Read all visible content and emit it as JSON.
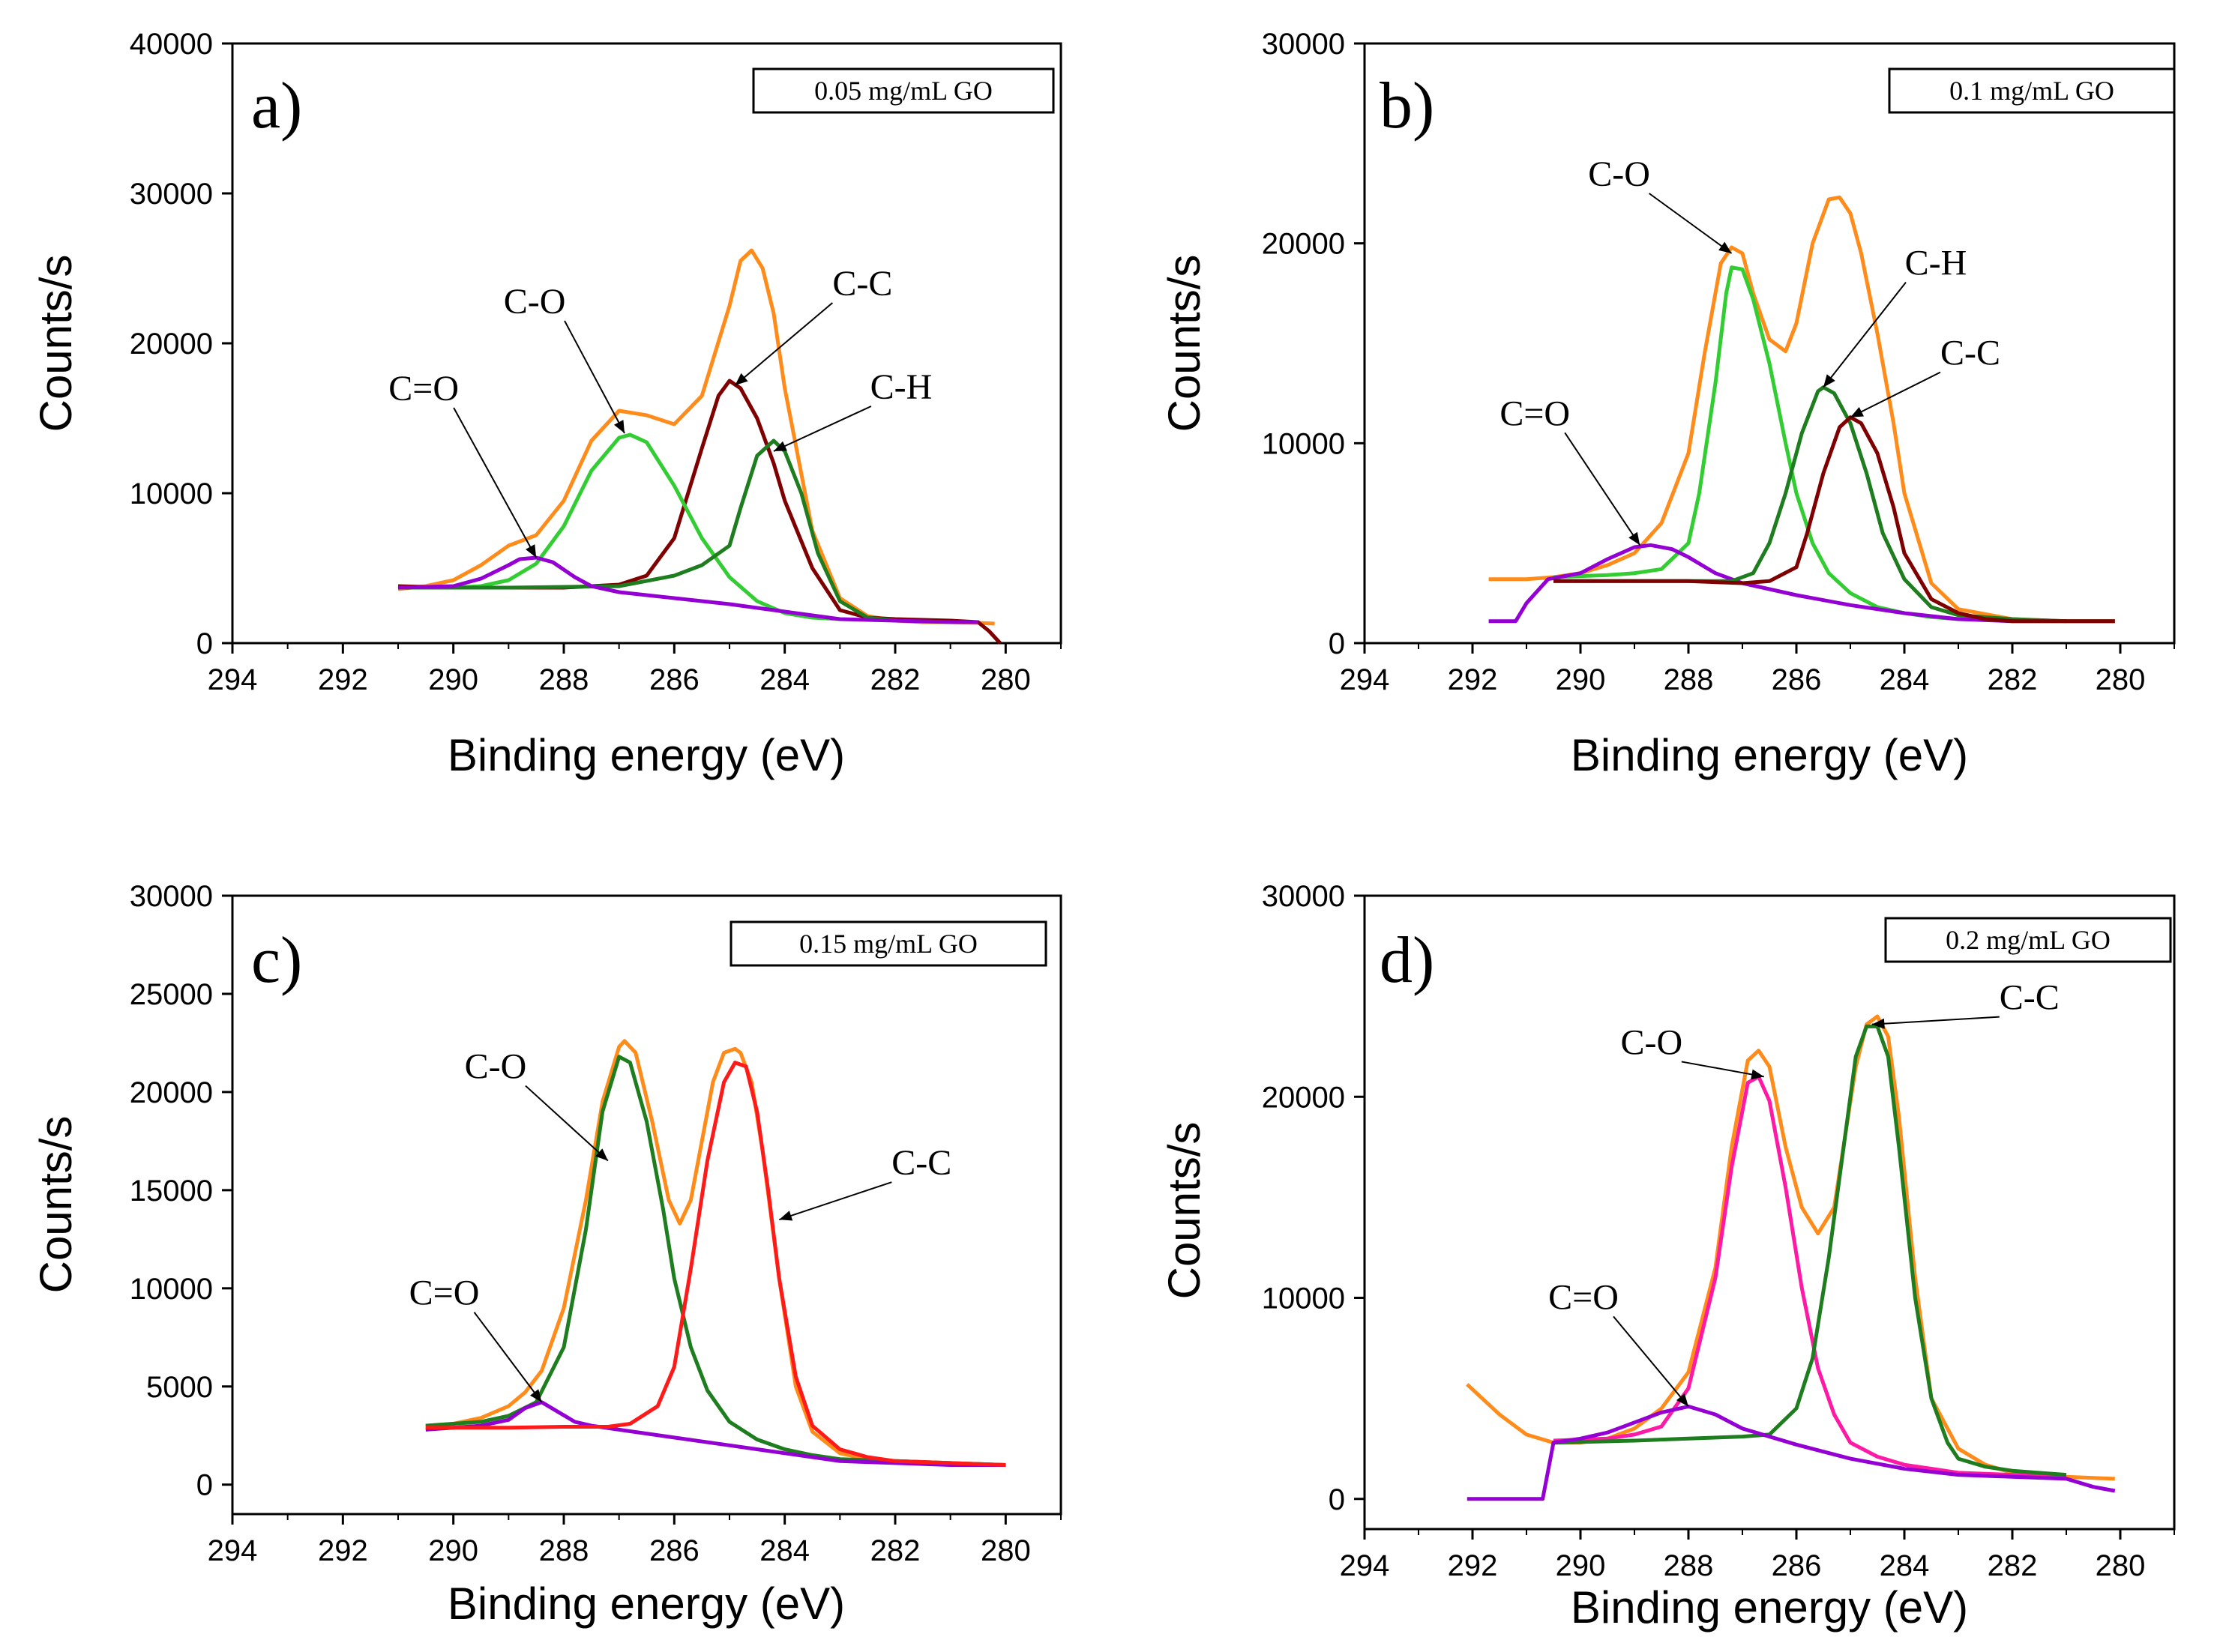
{
  "chart_data": [
    {
      "type": "line",
      "panel_label": "a)",
      "legend": "0.05 mg/mL GO",
      "xlabel": "Binding energy (eV)",
      "ylabel": "Counts/s",
      "xlim": [
        294,
        279
      ],
      "ylim": [
        0,
        40000
      ],
      "xticks": [
        "294",
        "292",
        "290",
        "288",
        "286",
        "284",
        "282",
        "280"
      ],
      "yticks": [
        "0",
        "10000",
        "20000",
        "30000",
        "40000"
      ],
      "series": [
        {
          "color": "#ff8c1a",
          "x": [
            291,
            290.5,
            290,
            289.5,
            289,
            288.5,
            288,
            287.5,
            287,
            286.5,
            286,
            285.5,
            285,
            284.8,
            284.6,
            284.4,
            284.2,
            284,
            283.5,
            283,
            282.5,
            282,
            281.5,
            281,
            280.5,
            280.2
          ],
          "y": [
            3600,
            3800,
            4200,
            5200,
            6500,
            7200,
            9500,
            13500,
            15500,
            15200,
            14600,
            16500,
            22500,
            25500,
            26200,
            25000,
            22000,
            17000,
            7500,
            3000,
            1800,
            1500,
            1400,
            1400,
            1350,
            1300
          ]
        },
        {
          "color": "#7f0000",
          "x": [
            291,
            290,
            289,
            288,
            287,
            286.5,
            286,
            285.5,
            285.2,
            285,
            284.8,
            284.5,
            284.2,
            284,
            283.5,
            283,
            282.5,
            282,
            281,
            280.5,
            280.3,
            280.1
          ],
          "y": [
            3800,
            3700,
            3700,
            3700,
            3900,
            4500,
            7000,
            13000,
            16500,
            17500,
            17000,
            15000,
            12000,
            9500,
            5000,
            2200,
            1700,
            1600,
            1500,
            1400,
            800,
            0
          ]
        },
        {
          "color": "#32cd32",
          "x": [
            291,
            290,
            289.5,
            289,
            288.5,
            288,
            287.5,
            287,
            286.8,
            286.5,
            286,
            285.5,
            285,
            284.5,
            284,
            283.5,
            283
          ],
          "y": [
            3700,
            3700,
            3800,
            4200,
            5300,
            7800,
            11500,
            13700,
            13900,
            13400,
            10500,
            7000,
            4400,
            2800,
            2000,
            1700,
            1600
          ]
        },
        {
          "color": "#1e7d1e",
          "x": [
            291,
            289,
            287,
            286,
            285.5,
            285,
            284.8,
            284.5,
            284.2,
            284,
            283.7,
            283.4,
            283,
            282.5,
            282
          ],
          "y": [
            3700,
            3700,
            3800,
            4500,
            5200,
            6500,
            9000,
            12500,
            13500,
            12800,
            10000,
            6000,
            2800,
            1700,
            1500
          ]
        },
        {
          "color": "#9400d3",
          "x": [
            291,
            290,
            289.5,
            289,
            288.8,
            288.5,
            288.2,
            287.8,
            287.5,
            287,
            286,
            285,
            284,
            283,
            282,
            281,
            280.5
          ],
          "y": [
            3700,
            3800,
            4300,
            5200,
            5600,
            5700,
            5400,
            4400,
            3800,
            3400,
            3000,
            2600,
            2100,
            1600,
            1500,
            1400,
            1400
          ]
        }
      ],
      "annotations": [
        {
          "text": "C=O",
          "x": 288.5,
          "y": 5700
        },
        {
          "text": "C-O",
          "x": 286.9,
          "y": 14000
        },
        {
          "text": "C-C",
          "x": 284.9,
          "y": 17200
        },
        {
          "text": "C-H",
          "x": 284.2,
          "y": 12800
        }
      ]
    },
    {
      "type": "line",
      "panel_label": "b)",
      "legend": "0.1 mg/mL GO",
      "xlabel": "Binding energy (eV)",
      "ylabel": "Counts/s",
      "xlim": [
        294,
        279
      ],
      "ylim": [
        0,
        30000
      ],
      "xticks": [
        "294",
        "292",
        "290",
        "288",
        "286",
        "284",
        "282",
        "280"
      ],
      "yticks": [
        "0",
        "10000",
        "20000",
        "30000"
      ],
      "series": [
        {
          "color": "#ff8c1a",
          "x": [
            291.7,
            291,
            290.5,
            290,
            289.5,
            289,
            288.5,
            288,
            287.7,
            287.4,
            287.2,
            287,
            286.8,
            286.5,
            286.2,
            286,
            285.7,
            285.4,
            285.2,
            285,
            284.8,
            284.5,
            284.2,
            284,
            283.5,
            283,
            282,
            281,
            280.1
          ],
          "y": [
            3200,
            3200,
            3300,
            3500,
            3900,
            4500,
            6000,
            9500,
            14500,
            19000,
            19800,
            19500,
            17500,
            15200,
            14600,
            16000,
            20000,
            22200,
            22300,
            21500,
            19500,
            15500,
            11000,
            7500,
            3000,
            1700,
            1200,
            1100,
            1100
          ]
        },
        {
          "color": "#32cd32",
          "x": [
            290.5,
            289.5,
            289,
            288.5,
            288,
            287.8,
            287.5,
            287.3,
            287.2,
            287,
            286.8,
            286.5,
            286.2,
            286,
            285.7,
            285.4,
            285,
            284.5,
            284,
            283.5,
            283
          ],
          "y": [
            3300,
            3400,
            3500,
            3700,
            5000,
            7500,
            13000,
            17500,
            18800,
            18700,
            17200,
            14000,
            10000,
            7500,
            5000,
            3500,
            2500,
            1800,
            1500,
            1300,
            1200
          ]
        },
        {
          "color": "#9400d3",
          "x": [
            291.7,
            291.2,
            291,
            290.6,
            290,
            289.5,
            289,
            288.7,
            288.3,
            288,
            287.5,
            287,
            286.5,
            286,
            285,
            284,
            283,
            282,
            281
          ],
          "y": [
            1100,
            1100,
            2000,
            3200,
            3500,
            4200,
            4800,
            4900,
            4700,
            4300,
            3500,
            3000,
            2700,
            2400,
            1900,
            1500,
            1200,
            1100,
            1100
          ]
        },
        {
          "color": "#1e7d1e",
          "x": [
            290.5,
            289,
            288,
            287.2,
            286.8,
            286.5,
            286.2,
            285.9,
            285.6,
            285.5,
            285.3,
            285,
            284.7,
            284.4,
            284,
            283.5,
            283,
            282,
            281,
            280.1
          ],
          "y": [
            3100,
            3100,
            3100,
            3100,
            3500,
            5000,
            7500,
            10500,
            12600,
            12800,
            12500,
            11000,
            8500,
            5500,
            3200,
            1800,
            1400,
            1200,
            1100,
            1100
          ]
        },
        {
          "color": "#7f0000",
          "x": [
            290.5,
            289,
            288,
            287,
            286.5,
            286,
            285.8,
            285.5,
            285.2,
            285,
            284.8,
            284.5,
            284.2,
            284,
            283.5,
            283,
            282.5,
            282,
            281,
            280.1
          ],
          "y": [
            3100,
            3100,
            3100,
            3000,
            3100,
            3800,
            5500,
            8500,
            10800,
            11300,
            11000,
            9500,
            6800,
            4500,
            2200,
            1500,
            1200,
            1100,
            1100,
            1100
          ]
        }
      ],
      "annotations": [
        {
          "text": "C=O",
          "x": 288.9,
          "y": 4900
        },
        {
          "text": "C-O",
          "x": 287.2,
          "y": 19500
        },
        {
          "text": "C-H",
          "x": 285.5,
          "y": 12800
        },
        {
          "text": "C-C",
          "x": 285.0,
          "y": 11300
        }
      ]
    },
    {
      "type": "line",
      "panel_label": "c)",
      "legend": "0.15 mg/mL GO",
      "xlabel": "Binding energy (eV)",
      "ylabel": "Counts/s",
      "xlim": [
        294,
        279
      ],
      "ylim": [
        -1500,
        30000
      ],
      "xticks": [
        "294",
        "292",
        "290",
        "288",
        "286",
        "284",
        "282",
        "280"
      ],
      "yticks": [
        "0",
        "5000",
        "10000",
        "15000",
        "20000",
        "25000",
        "30000"
      ],
      "series": [
        {
          "color": "#ff8c1a",
          "x": [
            290.5,
            290,
            289.5,
            289,
            288.7,
            288.4,
            288,
            287.6,
            287.3,
            287,
            286.9,
            286.7,
            286.4,
            286.1,
            285.9,
            285.7,
            285.5,
            285.3,
            285.1,
            284.9,
            284.8,
            284.6,
            284.4,
            284.1,
            283.8,
            283.5,
            283,
            282.5,
            282,
            281,
            280
          ],
          "y": [
            3000,
            3100,
            3400,
            4000,
            4700,
            5800,
            9000,
            14500,
            19500,
            22300,
            22600,
            22000,
            18500,
            14500,
            13300,
            14500,
            17500,
            20500,
            22000,
            22200,
            22000,
            20500,
            17000,
            10500,
            5000,
            2700,
            1600,
            1300,
            1200,
            1100,
            1000
          ]
        },
        {
          "color": "#1e7d1e",
          "x": [
            290.5,
            289.5,
            289,
            288.5,
            288,
            287.6,
            287.3,
            287,
            286.8,
            286.5,
            286.2,
            286,
            285.7,
            285.4,
            285,
            284.5,
            284,
            283.5,
            283,
            282,
            281,
            280
          ],
          "y": [
            3000,
            3200,
            3500,
            4200,
            7000,
            13000,
            19000,
            21800,
            21500,
            18500,
            14000,
            10500,
            7000,
            4800,
            3200,
            2300,
            1800,
            1500,
            1300,
            1200,
            1100,
            1000
          ]
        },
        {
          "color": "#9400d3",
          "x": [
            290.5,
            289.5,
            289,
            288.7,
            288.4,
            288.1,
            287.8,
            287.5,
            287,
            286,
            285,
            284,
            283,
            282,
            281,
            280
          ],
          "y": [
            2800,
            3000,
            3300,
            3900,
            4200,
            3700,
            3200,
            3000,
            2800,
            2400,
            2000,
            1600,
            1200,
            1100,
            1000,
            1000
          ]
        },
        {
          "color": "#ff1a1a",
          "x": [
            290.5,
            289,
            288,
            287.2,
            286.8,
            286.3,
            286,
            285.7,
            285.4,
            285.1,
            284.9,
            284.7,
            284.5,
            284.3,
            284.1,
            283.8,
            283.5,
            283,
            282.5,
            282,
            281,
            280
          ],
          "y": [
            2900,
            2900,
            2950,
            2950,
            3100,
            4000,
            6000,
            11000,
            16500,
            20500,
            21500,
            21300,
            19000,
            15000,
            10500,
            5500,
            3000,
            1800,
            1400,
            1200,
            1100,
            1000
          ]
        }
      ],
      "annotations": [
        {
          "text": "C=O",
          "x": 288.4,
          "y": 4200
        },
        {
          "text": "C-O",
          "x": 287.2,
          "y": 16500
        },
        {
          "text": "C-C",
          "x": 284.1,
          "y": 13500
        }
      ]
    },
    {
      "type": "line",
      "panel_label": "d)",
      "legend": "0.2 mg/mL GO",
      "xlabel": "Binding energy (eV)",
      "ylabel": "Counts/s",
      "xlim": [
        294,
        279
      ],
      "ylim": [
        -1500,
        30000
      ],
      "xticks": [
        "294",
        "292",
        "290",
        "288",
        "286",
        "284",
        "282",
        "280"
      ],
      "yticks": [
        "0",
        "10000",
        "20000",
        "30000"
      ],
      "series": [
        {
          "color": "#ff8c1a",
          "x": [
            292.1,
            291.5,
            291,
            290.5,
            290,
            289.5,
            289,
            288.5,
            288,
            287.5,
            287.2,
            286.9,
            286.7,
            286.5,
            286.2,
            285.9,
            285.6,
            285.3,
            285.1,
            284.9,
            284.7,
            284.5,
            284.3,
            284.1,
            283.8,
            283.5,
            283,
            282.5,
            282,
            281,
            280.1
          ],
          "y": [
            5700,
            4200,
            3200,
            2800,
            2800,
            3000,
            3500,
            4500,
            6300,
            11500,
            17500,
            21800,
            22300,
            21500,
            17500,
            14500,
            13200,
            14500,
            18000,
            21500,
            23600,
            24000,
            23000,
            19000,
            11000,
            5000,
            2500,
            1700,
            1300,
            1100,
            1000
          ]
        },
        {
          "color": "#ff1aa6",
          "x": [
            290.5,
            289.5,
            289,
            288.5,
            288,
            287.5,
            287.2,
            286.9,
            286.7,
            286.5,
            286.2,
            285.9,
            285.6,
            285.3,
            285,
            284.5,
            284,
            283.5,
            283,
            282,
            281
          ],
          "y": [
            2900,
            3000,
            3200,
            3600,
            5500,
            11000,
            16500,
            20700,
            21000,
            19800,
            15500,
            10500,
            6500,
            4200,
            2800,
            2100,
            1700,
            1500,
            1300,
            1200,
            1100
          ]
        },
        {
          "color": "#1e7d1e",
          "x": [
            290.5,
            289,
            288,
            287,
            286.5,
            286,
            285.7,
            285.4,
            285.1,
            284.9,
            284.7,
            284.5,
            284.3,
            284.1,
            283.8,
            283.5,
            283.2,
            283,
            282.5,
            282,
            281
          ],
          "y": [
            2800,
            2900,
            3000,
            3100,
            3200,
            4500,
            7000,
            12000,
            18000,
            22000,
            23500,
            23500,
            22000,
            17500,
            10000,
            5000,
            2800,
            2000,
            1600,
            1400,
            1200
          ]
        },
        {
          "color": "#9400d3",
          "x": [
            292.1,
            291,
            290.7,
            290.5,
            290,
            289.5,
            289,
            288.5,
            288,
            287.5,
            287,
            286,
            285,
            284,
            283,
            282,
            281,
            280.5,
            280.1
          ],
          "y": [
            0,
            0,
            0,
            2800,
            3000,
            3300,
            3800,
            4300,
            4600,
            4200,
            3500,
            2700,
            2000,
            1500,
            1200,
            1100,
            1000,
            600,
            400
          ]
        }
      ],
      "annotations": [
        {
          "text": "C=O",
          "x": 288.0,
          "y": 4600
        },
        {
          "text": "C-O",
          "x": 286.6,
          "y": 21000
        },
        {
          "text": "C-C",
          "x": 284.6,
          "y": 23600
        }
      ]
    }
  ]
}
